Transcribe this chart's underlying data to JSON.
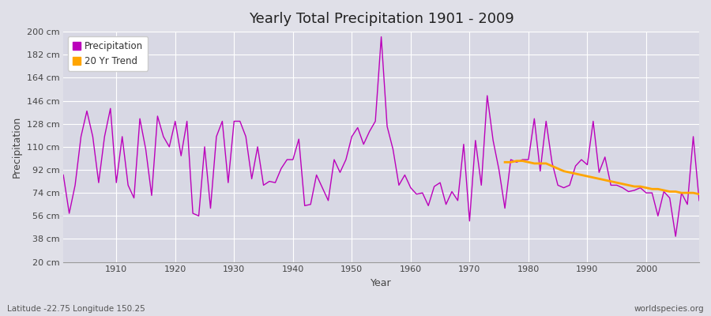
{
  "title": "Yearly Total Precipitation 1901 - 2009",
  "xlabel": "Year",
  "ylabel": "Precipitation",
  "subtitle": "Latitude -22.75 Longitude 150.25",
  "watermark": "worldspecies.org",
  "bg_color": "#e0e0e8",
  "plot_bg_color": "#d8d8e4",
  "precip_color": "#bb00bb",
  "trend_color": "#ffa500",
  "ylim": [
    20,
    200
  ],
  "yticks": [
    20,
    38,
    56,
    74,
    92,
    110,
    128,
    146,
    164,
    182,
    200
  ],
  "xticks": [
    1910,
    1920,
    1930,
    1940,
    1950,
    1960,
    1970,
    1980,
    1990,
    2000
  ],
  "xlim": [
    1901,
    2009
  ],
  "years": [
    1901,
    1902,
    1903,
    1904,
    1905,
    1906,
    1907,
    1908,
    1909,
    1910,
    1911,
    1912,
    1913,
    1914,
    1915,
    1916,
    1917,
    1918,
    1919,
    1920,
    1921,
    1922,
    1923,
    1924,
    1925,
    1926,
    1927,
    1928,
    1929,
    1930,
    1931,
    1932,
    1933,
    1934,
    1935,
    1936,
    1937,
    1938,
    1939,
    1940,
    1941,
    1942,
    1943,
    1944,
    1945,
    1946,
    1947,
    1948,
    1949,
    1950,
    1951,
    1952,
    1953,
    1954,
    1955,
    1956,
    1957,
    1958,
    1959,
    1960,
    1961,
    1962,
    1963,
    1964,
    1965,
    1966,
    1967,
    1968,
    1969,
    1970,
    1971,
    1972,
    1973,
    1974,
    1975,
    1976,
    1977,
    1978,
    1979,
    1980,
    1981,
    1982,
    1983,
    1984,
    1985,
    1986,
    1987,
    1988,
    1989,
    1990,
    1991,
    1992,
    1993,
    1994,
    1995,
    1996,
    1997,
    1998,
    1999,
    2000,
    2001,
    2002,
    2003,
    2004,
    2005,
    2006,
    2007,
    2008,
    2009
  ],
  "precip": [
    88,
    58,
    80,
    118,
    138,
    118,
    82,
    118,
    140,
    82,
    118,
    80,
    70,
    132,
    108,
    72,
    134,
    118,
    110,
    130,
    103,
    130,
    58,
    56,
    110,
    62,
    118,
    130,
    82,
    130,
    130,
    118,
    85,
    110,
    80,
    83,
    82,
    93,
    100,
    100,
    116,
    64,
    65,
    88,
    78,
    68,
    100,
    90,
    100,
    118,
    125,
    112,
    122,
    130,
    196,
    126,
    108,
    80,
    88,
    78,
    73,
    74,
    64,
    79,
    82,
    65,
    75,
    68,
    112,
    52,
    115,
    80,
    150,
    115,
    92,
    62,
    100,
    98,
    100,
    100,
    132,
    91,
    130,
    98,
    80,
    78,
    80,
    95,
    100,
    96,
    130,
    90,
    102,
    80,
    80,
    78,
    75,
    76,
    78,
    74,
    74,
    56,
    75,
    70,
    40,
    74,
    65,
    118,
    68
  ],
  "trend_years": [
    1976,
    1977,
    1978,
    1979,
    1980,
    1981,
    1982,
    1983,
    1984,
    1985,
    1986,
    1987,
    1988,
    1989,
    1990,
    1991,
    1992,
    1993,
    1994,
    1995,
    1996,
    1997,
    1998,
    1999,
    2000,
    2001,
    2002,
    2003,
    2004,
    2005,
    2006,
    2007,
    2008,
    2009
  ],
  "trend_values": [
    98,
    98,
    99,
    99,
    98,
    97,
    97,
    97,
    95,
    93,
    91,
    90,
    89,
    88,
    87,
    86,
    85,
    84,
    83,
    82,
    81,
    80,
    79,
    79,
    78,
    77,
    77,
    76,
    75,
    75,
    74,
    74,
    74,
    73
  ]
}
